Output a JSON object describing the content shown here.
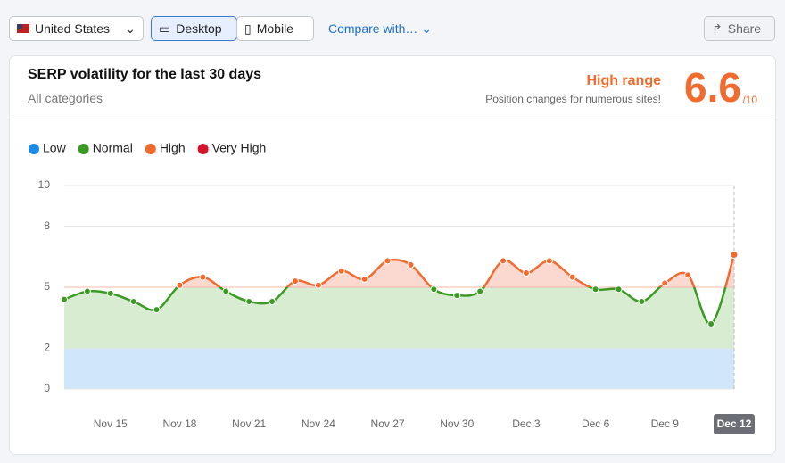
{
  "toolbar": {
    "country": "United States",
    "device_options": [
      "Desktop",
      "Mobile"
    ],
    "compare": "Compare with…",
    "share": "Share"
  },
  "header": {
    "title": "SERP volatility for the last 30 days",
    "subtitle": "All categories",
    "range_label": "High range",
    "range_note": "Position changes for numerous sites!",
    "score": 6.6,
    "scale": "/10"
  },
  "chart_data": {
    "type": "line",
    "legend": [
      {
        "name": "Low",
        "color": "#1a8ce8",
        "from": 0,
        "to": 2,
        "fill": "#cfe6fb"
      },
      {
        "name": "Normal",
        "color": "#3a9b22",
        "from": 2,
        "to": 5,
        "fill": "#d8ecd2"
      },
      {
        "name": "High",
        "color": "#f26a2e",
        "from": 5,
        "to": 8,
        "fill": "#fbd9d0"
      },
      {
        "name": "Very High",
        "color": "#d6132a",
        "from": 8,
        "to": 10,
        "fill": "#f7c9cd"
      }
    ],
    "categories": [
      null,
      null,
      "Nov 15",
      null,
      null,
      "Nov 18",
      null,
      null,
      "Nov 21",
      null,
      null,
      "Nov 24",
      null,
      null,
      "Nov 27",
      null,
      null,
      "Nov 30",
      null,
      null,
      "Dec 3",
      null,
      null,
      "Dec 6",
      null,
      null,
      "Dec 9",
      null,
      null,
      "Dec 12"
    ],
    "values": [
      4.4,
      4.8,
      4.7,
      4.3,
      3.9,
      5.1,
      5.5,
      4.8,
      4.3,
      4.3,
      5.3,
      5.1,
      5.8,
      5.4,
      6.3,
      6.1,
      4.9,
      4.6,
      4.8,
      6.3,
      5.7,
      6.3,
      5.5,
      4.9,
      4.9,
      4.3,
      5.2,
      5.6,
      3.2,
      6.6
    ],
    "ylim": [
      0,
      10
    ],
    "yticks": [
      0,
      2,
      5,
      8,
      10
    ],
    "grid": true
  }
}
